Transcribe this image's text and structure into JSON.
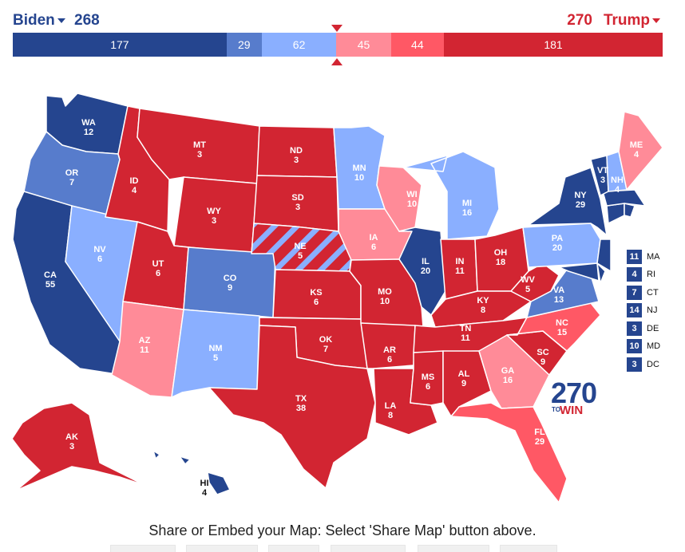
{
  "header": {
    "left_candidate": "Biden",
    "left_total": "268",
    "right_total": "270",
    "right_candidate": "Trump"
  },
  "colors": {
    "safe_d": "#25458f",
    "likely_d": "#577ccc",
    "lean_d": "#8aafff",
    "lean_r": "#ff8b98",
    "likely_r": "#ff5865",
    "safe_r": "#d22532"
  },
  "bar": [
    {
      "value": "177",
      "votes": 177,
      "color": "#25458f"
    },
    {
      "value": "29",
      "votes": 29,
      "color": "#577ccc"
    },
    {
      "value": "62",
      "votes": 62,
      "color": "#8aafff"
    },
    {
      "value": "45",
      "votes": 45,
      "color": "#ff8b98"
    },
    {
      "value": "44",
      "votes": 44,
      "color": "#ff5865"
    },
    {
      "value": "181",
      "votes": 181,
      "color": "#d22532"
    }
  ],
  "states": [
    {
      "abbr": "WA",
      "ev": "12"
    },
    {
      "abbr": "OR",
      "ev": "7"
    },
    {
      "abbr": "CA",
      "ev": "55"
    },
    {
      "abbr": "NV",
      "ev": "6"
    },
    {
      "abbr": "ID",
      "ev": "4"
    },
    {
      "abbr": "MT",
      "ev": "3"
    },
    {
      "abbr": "WY",
      "ev": "3"
    },
    {
      "abbr": "UT",
      "ev": "6"
    },
    {
      "abbr": "AZ",
      "ev": "11"
    },
    {
      "abbr": "CO",
      "ev": "9"
    },
    {
      "abbr": "NM",
      "ev": "5"
    },
    {
      "abbr": "ND",
      "ev": "3"
    },
    {
      "abbr": "SD",
      "ev": "3"
    },
    {
      "abbr": "NE",
      "ev": "5"
    },
    {
      "abbr": "KS",
      "ev": "6"
    },
    {
      "abbr": "OK",
      "ev": "7"
    },
    {
      "abbr": "TX",
      "ev": "38"
    },
    {
      "abbr": "MN",
      "ev": "10"
    },
    {
      "abbr": "IA",
      "ev": "6"
    },
    {
      "abbr": "MO",
      "ev": "10"
    },
    {
      "abbr": "AR",
      "ev": "6"
    },
    {
      "abbr": "LA",
      "ev": "8"
    },
    {
      "abbr": "WI",
      "ev": "10"
    },
    {
      "abbr": "IL",
      "ev": "20"
    },
    {
      "abbr": "MI",
      "ev": "16"
    },
    {
      "abbr": "IN",
      "ev": "11"
    },
    {
      "abbr": "OH",
      "ev": "18"
    },
    {
      "abbr": "KY",
      "ev": "8"
    },
    {
      "abbr": "TN",
      "ev": "11"
    },
    {
      "abbr": "MS",
      "ev": "6"
    },
    {
      "abbr": "AL",
      "ev": "9"
    },
    {
      "abbr": "GA",
      "ev": "16"
    },
    {
      "abbr": "FL",
      "ev": "29"
    },
    {
      "abbr": "SC",
      "ev": "9"
    },
    {
      "abbr": "NC",
      "ev": "15"
    },
    {
      "abbr": "VA",
      "ev": "13"
    },
    {
      "abbr": "WV",
      "ev": "5"
    },
    {
      "abbr": "PA",
      "ev": "20"
    },
    {
      "abbr": "NY",
      "ev": "29"
    },
    {
      "abbr": "VT",
      "ev": "3"
    },
    {
      "abbr": "NH",
      "ev": "4"
    },
    {
      "abbr": "ME",
      "ev": "4"
    },
    {
      "abbr": "AK",
      "ev": "3"
    },
    {
      "abbr": "HI",
      "ev": "4"
    }
  ],
  "small_states": [
    {
      "ev": "11",
      "abbr": "MA"
    },
    {
      "ev": "4",
      "abbr": "RI"
    },
    {
      "ev": "7",
      "abbr": "CT"
    },
    {
      "ev": "14",
      "abbr": "NJ"
    },
    {
      "ev": "3",
      "abbr": "DE"
    },
    {
      "ev": "10",
      "abbr": "MD"
    },
    {
      "ev": "3",
      "abbr": "DC"
    }
  ],
  "logo": {
    "number": "270",
    "to": "TO",
    "win": "WIN"
  },
  "footer": {
    "share_text": "Share or Embed your Map: Select 'Share Map' button above."
  }
}
